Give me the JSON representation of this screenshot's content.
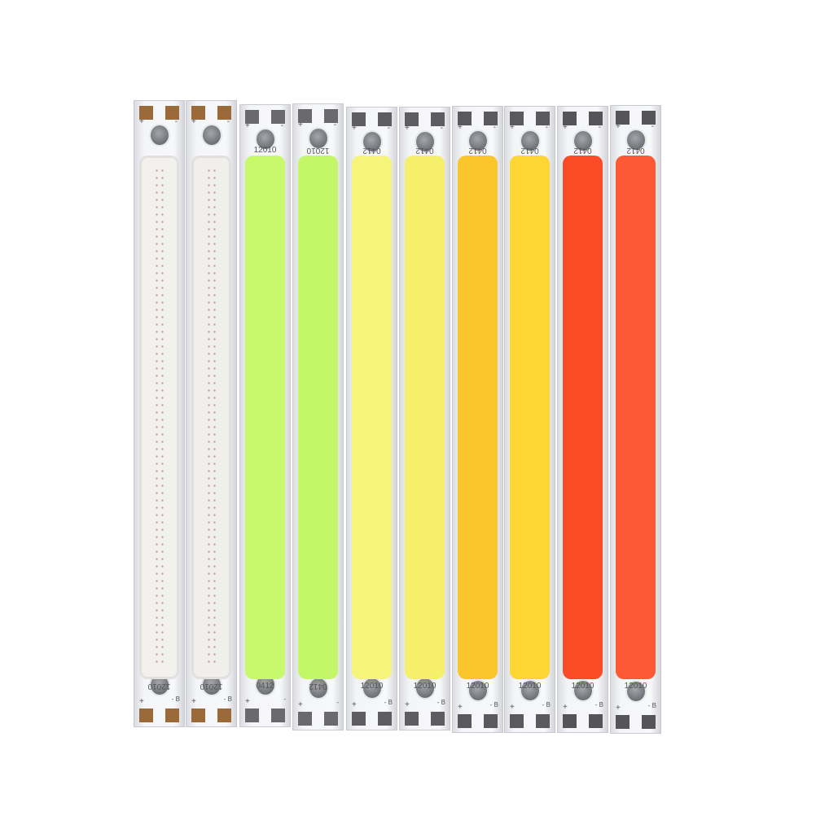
{
  "image": {
    "subject": "COB LED strips",
    "background_color": "#ffffff",
    "strips": [
      {
        "color": "#f3f1ee",
        "pad_color": "#9a6a3a",
        "top_label": "",
        "bottom_label": "12010",
        "top_rotated": false,
        "bottom_rotated": true,
        "plus": "+",
        "minus": "-",
        "b_mark": "B"
      },
      {
        "color": "#f1efec",
        "pad_color": "#9a6a3a",
        "top_label": "",
        "bottom_label": "12010",
        "top_rotated": false,
        "bottom_rotated": true,
        "plus": "+",
        "minus": "-",
        "b_mark": "B"
      },
      {
        "color": "#c8f86c",
        "pad_color": "#6a6a6c",
        "top_label": "12010",
        "bottom_label": "0412",
        "top_rotated": false,
        "bottom_rotated": false,
        "plus": "+",
        "minus": "-",
        "b_mark": ""
      },
      {
        "color": "#c4f768",
        "pad_color": "#6a6a6c",
        "top_label": "12010",
        "bottom_label": "0412",
        "top_rotated": true,
        "bottom_rotated": true,
        "plus": "+",
        "minus": "-",
        "b_mark": ""
      },
      {
        "color": "#f7f47c",
        "pad_color": "#5e5e60",
        "top_label": "0412",
        "bottom_label": "12010",
        "top_rotated": true,
        "bottom_rotated": false,
        "plus": "+",
        "minus": "-",
        "b_mark": "B"
      },
      {
        "color": "#f6ef6c",
        "pad_color": "#5e5e60",
        "top_label": "0412",
        "bottom_label": "12010",
        "top_rotated": true,
        "bottom_rotated": false,
        "plus": "+",
        "minus": "-",
        "b_mark": "B"
      },
      {
        "color": "#fbc62c",
        "pad_color": "#5a5a5c",
        "top_label": "0412",
        "bottom_label": "12010",
        "top_rotated": true,
        "bottom_rotated": false,
        "plus": "+",
        "minus": "-",
        "b_mark": "B"
      },
      {
        "color": "#fdd534",
        "pad_color": "#5a5a5c",
        "top_label": "0412",
        "bottom_label": "12010",
        "top_rotated": true,
        "bottom_rotated": false,
        "plus": "+",
        "minus": "-",
        "b_mark": "B"
      },
      {
        "color": "#fb4a26",
        "pad_color": "#555557",
        "top_label": "0412",
        "bottom_label": "12010",
        "top_rotated": true,
        "bottom_rotated": false,
        "plus": "+",
        "minus": "-",
        "b_mark": "B"
      },
      {
        "color": "#fc5a34",
        "pad_color": "#555557",
        "top_label": "0412",
        "bottom_label": "12010",
        "top_rotated": true,
        "bottom_rotated": false,
        "plus": "+",
        "minus": "-",
        "b_mark": "B"
      }
    ]
  }
}
